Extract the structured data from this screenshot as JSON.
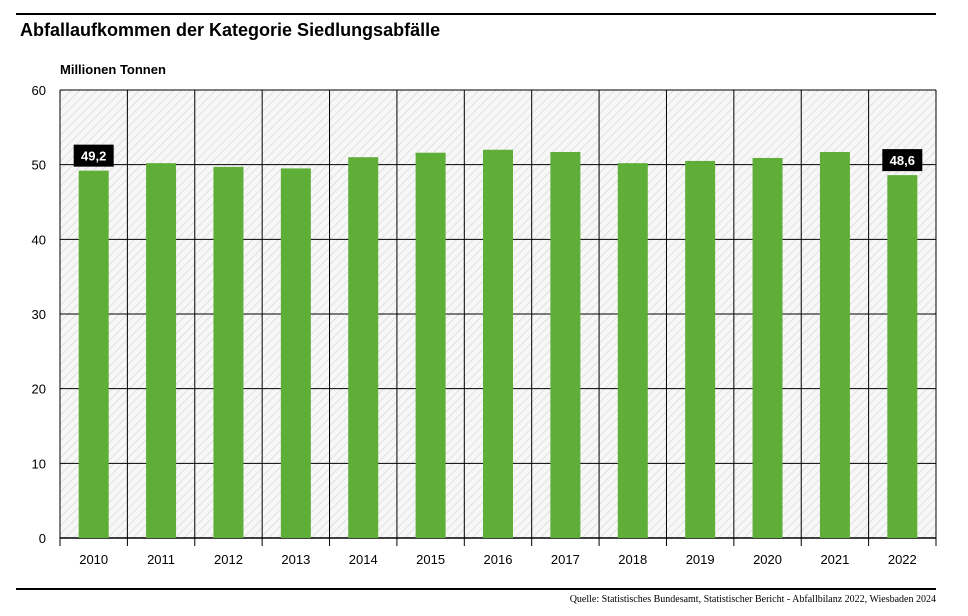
{
  "title": "Abfallaufkommen der Kategorie Siedlungsabfälle",
  "source": "Quelle: Statistisches Bundesamt, Statistischer Bericht - Abfallbilanz 2022, Wiesbaden 2024",
  "colors": {
    "bar": "#5fae38",
    "grid": "#000000",
    "badge": "#000000"
  },
  "chart_data": {
    "type": "bar",
    "title": "Abfallaufkommen der Kategorie Siedlungsabfälle",
    "ylabel": "Millionen Tonnen",
    "xlabel": "",
    "ylim": [
      0,
      60
    ],
    "yticks": [
      0,
      10,
      20,
      30,
      40,
      50,
      60
    ],
    "grid": true,
    "categories": [
      "2010",
      "2011",
      "2012",
      "2013",
      "2014",
      "2015",
      "2016",
      "2017",
      "2018",
      "2019",
      "2020",
      "2021",
      "2022"
    ],
    "values": [
      49.2,
      50.2,
      49.7,
      49.5,
      51.0,
      51.6,
      52.0,
      51.7,
      50.2,
      50.5,
      50.9,
      51.7,
      48.6
    ],
    "annotations": [
      {
        "index": 0,
        "text": "49,2"
      },
      {
        "index": 12,
        "text": "48,6"
      }
    ]
  }
}
